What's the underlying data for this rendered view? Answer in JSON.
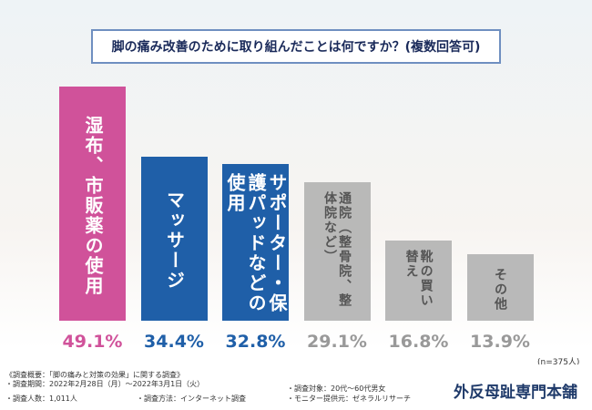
{
  "chart_data": {
    "type": "bar",
    "title": "脚の痛み改善のために取り組んだことは何ですか？(複数回答可)",
    "categories": [
      "湿布、市販薬の使用",
      "マッサージ",
      "サポーター・保護パッドなどの使用",
      "通院（整骨院、整体院など）",
      "靴の買い替え",
      "その他"
    ],
    "values": [
      49.1,
      34.4,
      32.8,
      29.1,
      16.8,
      13.9
    ],
    "value_labels": [
      "49.1%",
      "34.4%",
      "32.8%",
      "29.1%",
      "16.8%",
      "13.9%"
    ],
    "colors": [
      "#d0529a",
      "#1f5fa8",
      "#1f5fa8",
      "#b3b3b3",
      "#b3b3b3",
      "#b3b3b3"
    ],
    "note": "(n=375人)"
  },
  "footer": {
    "notes": [
      "《調査概要：「脚の痛みと対策の効果」に関する調査》",
      "・調査期間：2022年2月28日（月）～2022年3月1日（火）",
      "・調査対象：20代～60代男女",
      "・調査人数：1,011人",
      "・調査方法：インターネット調査",
      "・モニター提供元：ゼネラルリサーチ"
    ],
    "logo": "外反母趾専門本舗"
  }
}
